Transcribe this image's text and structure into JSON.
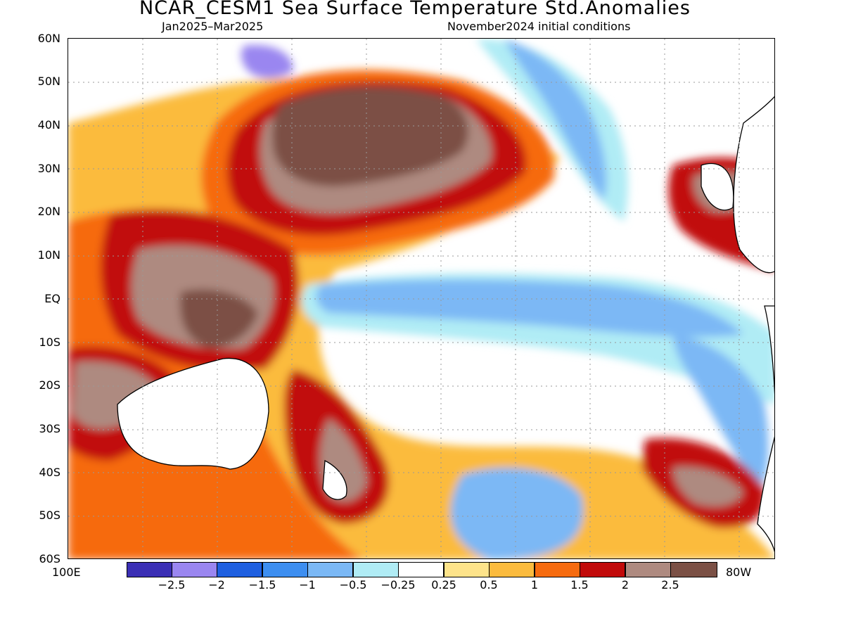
{
  "header": {
    "title": "NCAR_CESM1 Sea Surface Temperature Std.Anomalies",
    "period": "Jan2025–Mar2025",
    "init": "November2024 initial conditions"
  },
  "axes": {
    "lat_labels": [
      "60N",
      "50N",
      "40N",
      "30N",
      "20N",
      "10N",
      "EQ",
      "10S",
      "20S",
      "30S",
      "40S",
      "50S",
      "60S"
    ],
    "lon_left": "100E",
    "lon_right": "80W"
  },
  "colorbar": {
    "colors": [
      "#3b2fb5",
      "#9a86f0",
      "#1e5fe0",
      "#3d8ef0",
      "#7bb8f5",
      "#b0ecf5",
      "#ffffff",
      "#fde38a",
      "#fbbb3e",
      "#f66b0f",
      "#c10a0a",
      "#ae8a80",
      "#7b5045"
    ],
    "labels": [
      "−2.5",
      "−2",
      "−1.5",
      "−1",
      "−0.5",
      "−0.25",
      "0.25",
      "0.5",
      "1",
      "1.5",
      "2",
      "2.5"
    ]
  },
  "map": {
    "type": "filled-contour",
    "variable": "Sea Surface Temperature Std.Anomalies",
    "lat_range": [
      "60S",
      "60N"
    ],
    "lon_range": [
      "100E",
      "80W"
    ]
  }
}
